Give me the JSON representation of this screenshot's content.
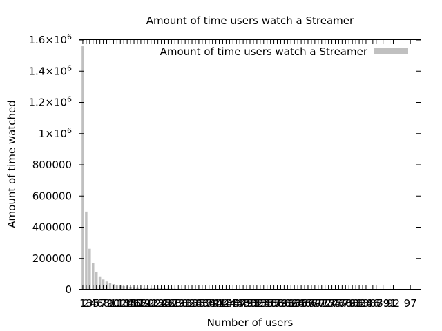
{
  "chart_data": {
    "type": "bar",
    "title": "Amount of time users watch a Streamer",
    "xlabel": "Number of users",
    "ylabel": "Amount of time watched",
    "legend": {
      "label": "Amount of time users watch a Streamer",
      "position": "top-right"
    },
    "bar_color": "#c0c0c0",
    "ylim": [
      0,
      1600000
    ],
    "yticks": [
      {
        "value": 0,
        "mantissa": "0",
        "exp": ""
      },
      {
        "value": 200000,
        "mantissa": "200000",
        "exp": ""
      },
      {
        "value": 400000,
        "mantissa": "400000",
        "exp": ""
      },
      {
        "value": 600000,
        "mantissa": "600000",
        "exp": ""
      },
      {
        "value": 800000,
        "mantissa": "800000",
        "exp": ""
      },
      {
        "value": 1000000,
        "mantissa": "1×10",
        "exp": "6"
      },
      {
        "value": 1200000,
        "mantissa": "1.2×10",
        "exp": "6"
      },
      {
        "value": 1400000,
        "mantissa": "1.4×10",
        "exp": "6"
      },
      {
        "value": 1600000,
        "mantissa": "1.6×10",
        "exp": "6"
      }
    ],
    "categories": [
      1,
      2,
      3,
      4,
      5,
      6,
      7,
      8,
      9,
      10,
      11,
      12,
      13,
      14,
      15,
      16,
      17,
      18,
      19,
      20,
      21,
      22,
      23,
      24,
      25,
      26,
      27,
      28,
      29,
      30,
      31,
      32,
      33,
      34,
      35,
      36,
      37,
      38,
      39,
      40,
      41,
      42,
      43,
      44,
      45,
      46,
      47,
      48,
      49,
      50,
      51,
      52,
      53,
      54,
      55,
      56,
      57,
      58,
      59,
      60,
      61,
      62,
      63,
      64,
      65,
      66,
      67,
      68,
      69,
      70,
      71,
      72,
      73,
      74,
      75,
      76,
      77,
      78,
      79,
      80,
      81,
      82,
      83,
      84,
      86,
      87,
      89,
      91,
      92,
      97
    ],
    "values": [
      1560000,
      500000,
      262000,
      170000,
      115000,
      85000,
      65000,
      52000,
      42000,
      35000,
      30000,
      26000,
      23000,
      20000,
      18000,
      16000,
      14500,
      13000,
      12000,
      11000,
      10000,
      9200,
      8500,
      7900,
      7300,
      6800,
      6300,
      5900,
      5500,
      5100,
      4800,
      4500,
      4200,
      4000,
      3700,
      3500,
      3300,
      3100,
      2900,
      2700,
      2600,
      2400,
      2300,
      2200,
      2100,
      2000,
      1900,
      1800,
      1700,
      1600,
      1500,
      1450,
      1400,
      1350,
      1300,
      1250,
      1200,
      1150,
      1100,
      1050,
      1000,
      950,
      900,
      870,
      840,
      810,
      780,
      750,
      720,
      690,
      660,
      630,
      600,
      570,
      540,
      510,
      480,
      450,
      420,
      400,
      380,
      360,
      340,
      320,
      290,
      270,
      250,
      230,
      210,
      180
    ]
  }
}
